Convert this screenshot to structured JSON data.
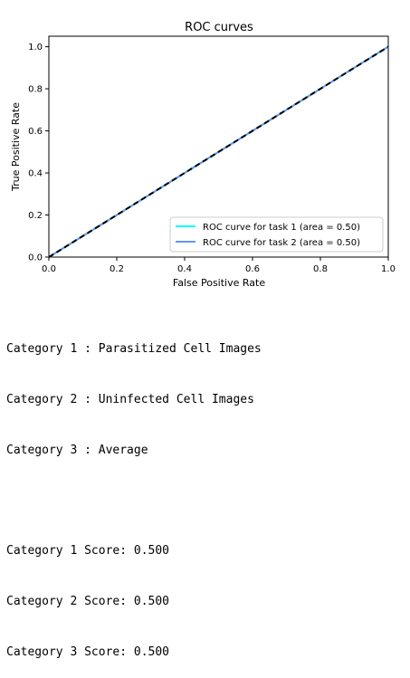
{
  "chart_data": {
    "type": "line",
    "title": "ROC curves",
    "xlabel": "False Positive Rate",
    "ylabel": "True Positive Rate",
    "xlim": [
      0.0,
      1.0
    ],
    "ylim": [
      0.0,
      1.05
    ],
    "xticks": [
      "0.0",
      "0.2",
      "0.4",
      "0.6",
      "0.8",
      "1.0"
    ],
    "yticks": [
      "0.0",
      "0.2",
      "0.4",
      "0.6",
      "0.8",
      "1.0"
    ],
    "grid": false,
    "legend_position": "lower-right",
    "series": [
      {
        "name": "ROC curve for task 1 (area = 0.50)",
        "color": "#00ffff",
        "x": [
          0.0,
          1.0
        ],
        "y": [
          0.0,
          1.0
        ]
      },
      {
        "name": "ROC curve for task 2 (area = 0.50)",
        "color": "#6495ed",
        "x": [
          0.0,
          1.0
        ],
        "y": [
          0.0,
          1.0
        ]
      }
    ],
    "reference_line": {
      "color": "#000000",
      "style": "dashed",
      "x": [
        0.0,
        1.0
      ],
      "y": [
        0.0,
        1.0
      ]
    }
  },
  "output": {
    "categories": [
      "Category 1 : Parasitized Cell Images",
      "Category 2 : Uninfected Cell Images",
      "Category 3 : Average"
    ],
    "scores": [
      "Category 1 Score: 0.500",
      "Category 2 Score: 0.500",
      "Category 3 Score: 0.500"
    ]
  }
}
